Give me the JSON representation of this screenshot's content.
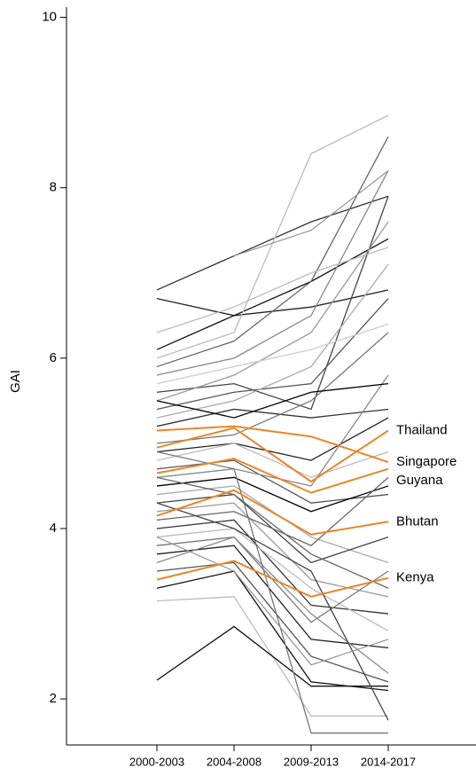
{
  "chart_data": {
    "type": "line",
    "ylabel": "GAI",
    "categories": [
      "2000-2003",
      "2004-2008",
      "2009-2013",
      "2014-2017"
    ],
    "ylim": [
      1.46,
      10.12
    ],
    "yticks": [
      2,
      4,
      6,
      8,
      10
    ],
    "series": [
      {
        "color": "#333333",
        "values": [
          6.8,
          7.2,
          7.6,
          7.9
        ]
      },
      {
        "color": "#222222",
        "values": [
          6.7,
          6.5,
          6.6,
          6.8
        ]
      },
      {
        "color": "#111111",
        "values": [
          6.1,
          6.5,
          6.9,
          7.4
        ]
      },
      {
        "color": "#bbbbbb",
        "values": [
          6.0,
          6.3,
          8.4,
          8.85
        ]
      },
      {
        "color": "#666666",
        "values": [
          5.9,
          6.2,
          6.9,
          8.6
        ]
      },
      {
        "color": "#888888",
        "values": [
          5.8,
          6.0,
          6.5,
          8.2
        ]
      },
      {
        "color": "#444444",
        "values": [
          5.6,
          5.7,
          5.4,
          7.9
        ]
      },
      {
        "color": "#999999",
        "values": [
          5.5,
          5.8,
          6.3,
          7.6
        ]
      },
      {
        "color": "#555555",
        "values": [
          5.4,
          5.6,
          5.7,
          6.7
        ]
      },
      {
        "color": "#aaaaaa",
        "values": [
          5.3,
          5.5,
          5.9,
          7.1
        ]
      },
      {
        "color": "#333333",
        "values": [
          5.2,
          5.4,
          5.3,
          5.4
        ]
      },
      {
        "color": "#777777",
        "values": [
          5.0,
          5.1,
          5.5,
          6.3
        ]
      },
      {
        "color": "#222222",
        "values": [
          4.9,
          5.0,
          4.8,
          5.3
        ]
      },
      {
        "color": "#bbbbbb",
        "values": [
          4.8,
          5.0,
          4.6,
          4.9
        ]
      },
      {
        "color": "#555555",
        "values": [
          4.7,
          4.8,
          4.3,
          4.4
        ]
      },
      {
        "color": "#888888",
        "values": [
          4.6,
          4.7,
          4.5,
          5.8
        ]
      },
      {
        "color": "#000000",
        "values": [
          4.5,
          4.6,
          4.2,
          4.5
        ]
      },
      {
        "color": "#aaaaaa",
        "values": [
          4.4,
          4.5,
          3.9,
          3.6
        ]
      },
      {
        "color": "#444444",
        "values": [
          4.3,
          4.4,
          3.6,
          3.9
        ]
      },
      {
        "color": "#999999",
        "values": [
          4.2,
          4.3,
          3.4,
          3.2
        ]
      },
      {
        "color": "#666666",
        "values": [
          4.1,
          4.2,
          3.8,
          4.6
        ]
      },
      {
        "color": "#333333",
        "values": [
          4.0,
          4.1,
          3.1,
          3.0
        ]
      },
      {
        "color": "#bbbbbb",
        "values": [
          3.9,
          4.0,
          3.3,
          2.8
        ]
      },
      {
        "color": "#777777",
        "values": [
          3.8,
          3.9,
          2.9,
          3.5
        ]
      },
      {
        "color": "#222222",
        "values": [
          3.7,
          3.8,
          2.7,
          2.6
        ]
      },
      {
        "color": "#888888",
        "values": [
          3.6,
          3.9,
          3.0,
          2.3
        ]
      },
      {
        "color": "#555555",
        "values": [
          3.5,
          3.6,
          2.5,
          2.2
        ]
      },
      {
        "color": "#111111",
        "values": [
          3.3,
          3.5,
          2.2,
          2.1
        ]
      },
      {
        "color": "#bbbbbb",
        "values": [
          3.15,
          3.2,
          1.8,
          1.8
        ]
      },
      {
        "color": "#111111",
        "values": [
          2.22,
          2.85,
          2.15,
          2.15
        ]
      },
      {
        "color": "#999999",
        "values": [
          null,
          7.2,
          7.5,
          8.2
        ]
      },
      {
        "color": "#777777",
        "values": [
          4.9,
          4.7,
          1.6,
          1.6
        ]
      },
      {
        "color": "#cccccc",
        "values": [
          5.7,
          5.9,
          6.1,
          6.4
        ]
      },
      {
        "color": "#444444",
        "values": [
          4.3,
          4.0,
          3.5,
          1.75
        ]
      },
      {
        "color": "#999999",
        "values": [
          3.9,
          3.5,
          2.4,
          2.7
        ]
      },
      {
        "color": "#bbbbbb",
        "values": [
          6.3,
          6.6,
          7.0,
          7.3
        ]
      },
      {
        "color": "#000000",
        "values": [
          5.5,
          5.3,
          5.6,
          5.7
        ]
      },
      {
        "color": "#666666",
        "values": [
          4.6,
          4.4,
          3.7,
          3.3
        ]
      },
      {
        "name": "Thailand",
        "color": "#e8862a",
        "values": [
          4.95,
          5.18,
          4.55,
          5.15
        ]
      },
      {
        "name": "Singapore",
        "color": "#e8862a",
        "values": [
          5.15,
          5.2,
          5.08,
          4.78
        ]
      },
      {
        "name": "Guyana",
        "color": "#e8862a",
        "values": [
          4.65,
          4.82,
          4.42,
          4.7
        ]
      },
      {
        "name": "Bhutan",
        "color": "#e8862a",
        "values": [
          4.15,
          4.45,
          3.93,
          4.08
        ]
      },
      {
        "name": "Kenya",
        "color": "#e8862a",
        "values": [
          3.4,
          3.62,
          3.2,
          3.42
        ]
      }
    ]
  }
}
